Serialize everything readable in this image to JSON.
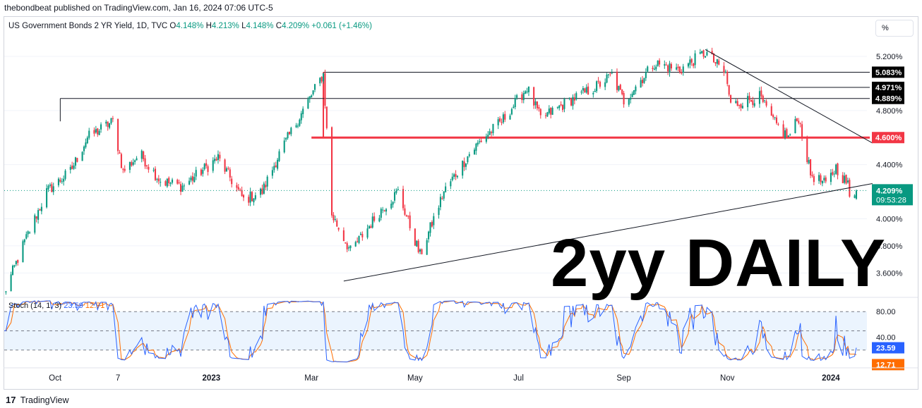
{
  "header": {
    "publisher_line": "thebondbeat published on TradingView.com, Jan 16, 2024 07:06 UTC-5"
  },
  "legend": {
    "symbol": "US Government Bonds 2 YR Yield, 1D, TVC",
    "o_label": "O",
    "o_value": "4.148%",
    "h_label": "H",
    "h_value": "4.213%",
    "l_label": "L",
    "l_value": "4.148%",
    "c_label": "C",
    "c_value": "4.209%",
    "change": "+0.061 (+1.46%)"
  },
  "scale_button": "%",
  "overlay_text": "2yy DAILY",
  "footer": {
    "logo": "17",
    "brand": "TradingView"
  },
  "colors": {
    "up": "#089981",
    "down": "#f23645",
    "stoch_k": "#2962ff",
    "stoch_d": "#ff6d00",
    "level_red": "#f23645",
    "price_badge": "#089981"
  },
  "chart_data": [
    {
      "type": "candlestick",
      "title": "US Government Bonds 2 YR Yield, 1D, TVC",
      "x_ticks": [
        "Oct",
        "7",
        "2023",
        "Mar",
        "May",
        "Jul",
        "Sep",
        "Nov",
        "2024"
      ],
      "y_ticks": [
        "5.200%",
        "4.800%",
        "4.400%",
        "4.000%",
        "3.800%",
        "3.600%"
      ],
      "ylim": [
        3.43,
        5.33
      ],
      "x_range": [
        "2022-09-01",
        "2024-01-16"
      ],
      "close_path": [
        [
          "2022-09-01",
          3.45
        ],
        [
          "2022-09-12",
          3.8
        ],
        [
          "2022-09-26",
          4.2
        ],
        [
          "2022-10-10",
          4.35
        ],
        [
          "2022-10-20",
          4.6
        ],
        [
          "2022-11-04",
          4.72
        ],
        [
          "2022-11-10",
          4.35
        ],
        [
          "2022-11-20",
          4.48
        ],
        [
          "2022-12-02",
          4.28
        ],
        [
          "2022-12-15",
          4.24
        ],
        [
          "2023-01-05",
          4.45
        ],
        [
          "2023-01-20",
          4.14
        ],
        [
          "2023-01-31",
          4.2
        ],
        [
          "2023-02-10",
          4.48
        ],
        [
          "2023-02-24",
          4.8
        ],
        [
          "2023-03-08",
          5.07
        ],
        [
          "2023-03-13",
          4.03
        ],
        [
          "2023-03-24",
          3.76
        ],
        [
          "2023-04-10",
          4.05
        ],
        [
          "2023-04-21",
          4.2
        ],
        [
          "2023-05-04",
          3.73
        ],
        [
          "2023-05-18",
          4.2
        ],
        [
          "2023-06-02",
          4.48
        ],
        [
          "2023-06-09",
          4.58
        ],
        [
          "2023-06-21",
          4.72
        ],
        [
          "2023-07-06",
          4.97
        ],
        [
          "2023-07-14",
          4.74
        ],
        [
          "2023-08-01",
          4.88
        ],
        [
          "2023-08-15",
          4.97
        ],
        [
          "2023-08-25",
          5.06
        ],
        [
          "2023-09-01",
          4.87
        ],
        [
          "2023-09-19",
          5.15
        ],
        [
          "2023-10-04",
          5.1
        ],
        [
          "2023-10-19",
          5.23
        ],
        [
          "2023-10-31",
          5.07
        ],
        [
          "2023-11-03",
          4.84
        ],
        [
          "2023-11-20",
          4.9
        ],
        [
          "2023-11-28",
          4.72
        ],
        [
          "2023-12-07",
          4.6
        ],
        [
          "2023-12-13",
          4.75
        ],
        [
          "2023-12-20",
          4.33
        ],
        [
          "2023-12-29",
          4.25
        ],
        [
          "2024-01-04",
          4.38
        ],
        [
          "2024-01-11",
          4.25
        ],
        [
          "2024-01-12",
          4.15
        ],
        [
          "2024-01-16",
          4.209
        ]
      ],
      "last": {
        "open": 4.148,
        "high": 4.213,
        "low": 4.148,
        "close": 4.209
      },
      "horizontal_levels": [
        {
          "label": "5.083%",
          "value": 5.083,
          "color": "#131722"
        },
        {
          "label": "4.971%",
          "value": 4.971,
          "color": "#131722"
        },
        {
          "label": "4.889%",
          "value": 4.889,
          "color": "#131722"
        },
        {
          "label": "4.600%",
          "value": 4.6,
          "color": "#f23645"
        }
      ],
      "trendlines": [
        {
          "from": [
            "2023-03-20",
            3.54
          ],
          "to": [
            "2024-01-18",
            4.26
          ]
        },
        {
          "from": [
            "2023-10-19",
            5.25
          ],
          "to": [
            "2024-01-18",
            4.56
          ]
        }
      ],
      "price_badge": {
        "value_label": "4.209%",
        "countdown": "09:53:28"
      }
    },
    {
      "type": "line",
      "title": "Stoch (14, 1, 3)",
      "legend_values": {
        "k": "23.59",
        "d": "12.71"
      },
      "y_ticks": [
        "80.00",
        "40.00"
      ],
      "band": [
        20,
        80
      ],
      "ylim": [
        0,
        100
      ],
      "last": {
        "k": 23.59,
        "d": 12.71
      }
    }
  ]
}
